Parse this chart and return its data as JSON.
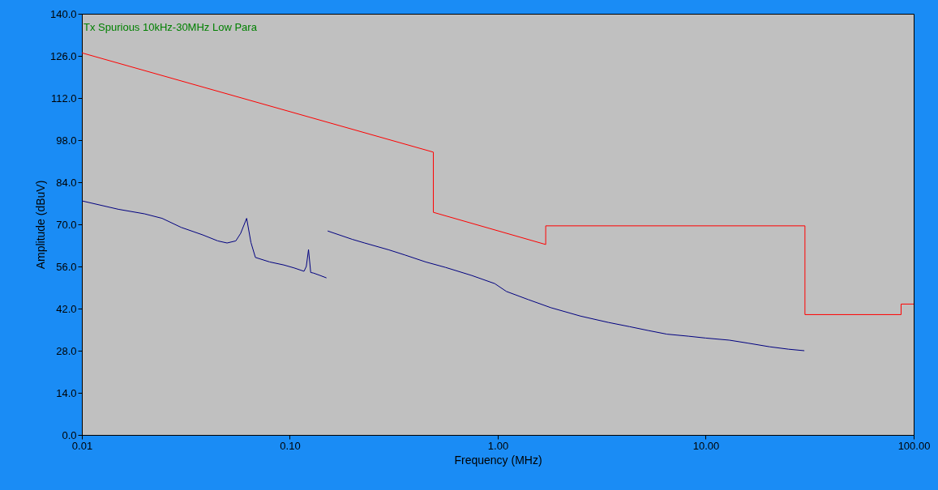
{
  "chart_data": {
    "type": "line",
    "title": "Tx Spurious 10kHz-30MHz Low Para",
    "xlabel": "Frequency (MHz)",
    "ylabel": "Amplitude (dBuV)",
    "log": "x",
    "grid": false,
    "xlim": [
      0.01,
      100
    ],
    "xticks": [
      {
        "value": 0.01,
        "label": "0.01"
      },
      {
        "value": 0.1,
        "label": "0.10"
      },
      {
        "value": 1,
        "label": "1.00"
      },
      {
        "value": 10,
        "label": "10.00"
      },
      {
        "value": 100,
        "label": "100.00"
      }
    ],
    "ylim": [
      0,
      140
    ],
    "yticks": [
      {
        "value": 0,
        "label": "0.0"
      },
      {
        "value": 14,
        "label": "14.0"
      },
      {
        "value": 28,
        "label": "28.0"
      },
      {
        "value": 42,
        "label": "42.0"
      },
      {
        "value": 56,
        "label": "56.0"
      },
      {
        "value": 70,
        "label": "70.0"
      },
      {
        "value": 84,
        "label": "84.0"
      },
      {
        "value": 98,
        "label": "98.0"
      },
      {
        "value": 112,
        "label": "112.0"
      },
      {
        "value": 126,
        "label": "126.0"
      },
      {
        "value": 140,
        "label": "140.0"
      }
    ],
    "series": [
      {
        "color": "#ff0000",
        "x": [
          0.01,
          0.49,
          0.49,
          1.7,
          1.7,
          30,
          30,
          87,
          87,
          100
        ],
        "values": [
          127,
          94,
          74,
          63.3,
          69.5,
          69.5,
          40,
          40,
          43.5,
          43.5
        ]
      },
      {
        "color": "#000080",
        "x": [
          0.01,
          0.015,
          0.02,
          0.0243,
          0.03,
          0.0381,
          0.045,
          0.0499,
          0.055,
          0.058,
          0.062,
          0.065,
          0.0683,
          0.08,
          0.0935,
          0.105,
          0.117,
          0.12,
          0.123,
          0.126,
          0.13,
          0.14,
          0.15,
          0.151,
          0.152,
          0.2,
          0.229,
          0.3,
          0.358,
          0.45,
          0.56,
          0.75,
          0.967,
          1.1,
          1.4,
          1.8,
          2.5,
          3.4,
          4.3,
          5.3,
          6.5,
          8.3,
          10,
          13,
          16,
          20.3,
          25,
          29.8
        ],
        "values": [
          77.8,
          75,
          73.5,
          72,
          69,
          66.5,
          64.5,
          63.8,
          64.5,
          67,
          72,
          64,
          59,
          57.5,
          56.5,
          55.5,
          54.4,
          56,
          61.6,
          54,
          53.8,
          53,
          52.2,
          null,
          67.8,
          65,
          63.8,
          61.5,
          59.8,
          57.5,
          55.7,
          53,
          50.3,
          47.7,
          45,
          42.3,
          39.5,
          37.4,
          36,
          34.7,
          33.5,
          32.8,
          32.2,
          31.5,
          30.5,
          29.3,
          28.5,
          28
        ]
      }
    ]
  }
}
